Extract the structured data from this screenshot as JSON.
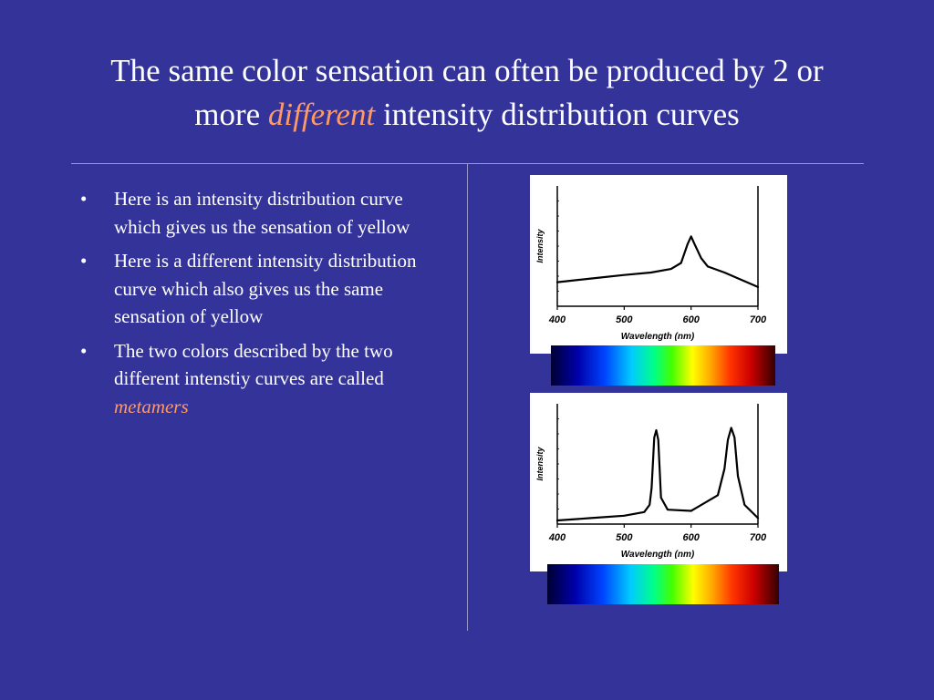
{
  "slide": {
    "title_line1": "The same color sensation can often be produced by 2 or",
    "title_line2_pre": "more ",
    "title_line2_em": "different",
    "title_line2_post": " intensity distribution  curves",
    "bullet_symbol": "•",
    "bullets": [
      {
        "text": "Here is an intensity distribution curve which gives us the sensation of yellow"
      },
      {
        "text": "Here is a different intensity distribution curve which also gives us the same sensation of yellow"
      },
      {
        "text_pre": "The two colors described by the two different intenstiy curves are called ",
        "text_em": "metamers"
      }
    ]
  },
  "chart_data": [
    {
      "type": "line",
      "xlabel": "Wavelength (nm)",
      "ylabel": "Intensity",
      "x_ticks": [
        "400",
        "500",
        "600",
        "700"
      ],
      "xlim": [
        400,
        700
      ],
      "ylim": [
        0,
        1
      ],
      "series": [
        {
          "x": [
            400,
            450,
            500,
            540,
            570,
            585,
            595,
            600,
            605,
            615,
            625,
            650,
            700
          ],
          "y": [
            0.2,
            0.23,
            0.26,
            0.28,
            0.31,
            0.36,
            0.52,
            0.58,
            0.52,
            0.4,
            0.33,
            0.28,
            0.16
          ]
        }
      ]
    },
    {
      "type": "line",
      "xlabel": "Wavelength (nm)",
      "ylabel": "Intensity",
      "x_ticks": [
        "400",
        "500",
        "600",
        "700"
      ],
      "xlim": [
        400,
        700
      ],
      "ylim": [
        0,
        1
      ],
      "series": [
        {
          "x": [
            400,
            450,
            500,
            530,
            538,
            541,
            545,
            548,
            551,
            555,
            565,
            600,
            640,
            650,
            655,
            660,
            665,
            670,
            680,
            700
          ],
          "y": [
            0.03,
            0.05,
            0.07,
            0.1,
            0.16,
            0.3,
            0.72,
            0.78,
            0.7,
            0.22,
            0.12,
            0.11,
            0.24,
            0.46,
            0.7,
            0.8,
            0.72,
            0.4,
            0.16,
            0.05
          ]
        }
      ]
    }
  ],
  "colors": {
    "background": "#333399",
    "accent": "#ff9966",
    "text": "#ffffff",
    "rule": "#9999cc"
  }
}
